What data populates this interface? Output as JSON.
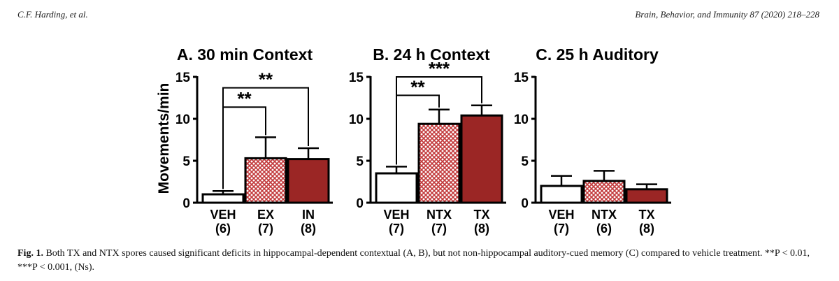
{
  "header": {
    "left": "C.F. Harding, et al.",
    "right": "Brain, Behavior, and Immunity 87 (2020) 218–228"
  },
  "figure": {
    "ylabel": "Movements/min",
    "caption_label": "Fig. 1.",
    "caption_text": "Both TX and NTX spores caused significant deficits in hippocampal-dependent contextual (A, B), but not non-hippocampal auditory-cued memory (C) compared to vehicle treatment. **P < 0.01, ***P < 0.001, (Ns)."
  },
  "colors": {
    "veh": "#ffffff",
    "pattern": "#c2383a",
    "solid": "#9b2625",
    "outline": "#000000"
  },
  "chart_data": [
    {
      "type": "bar",
      "title": "A. 30 min Context",
      "ylabel": "Movements/min",
      "ylim": [
        0,
        15
      ],
      "yticks": [
        "0",
        "5",
        "10",
        "15"
      ],
      "categories": [
        "VEH",
        "EX",
        "IN"
      ],
      "n_labels": [
        "(6)",
        "(7)",
        "(8)"
      ],
      "values": [
        1.0,
        5.3,
        5.2
      ],
      "errors": [
        0.4,
        2.5,
        1.3
      ],
      "fills": [
        "white",
        "hatched",
        "solid"
      ],
      "significance": [
        {
          "from": 0,
          "to": 1,
          "label": "**",
          "y": 11.4
        },
        {
          "from": 0,
          "to": 2,
          "label": "**",
          "y": 13.7
        }
      ]
    },
    {
      "type": "bar",
      "title": "B. 24 h Context",
      "ylabel": "",
      "ylim": [
        0,
        15
      ],
      "yticks": [
        "0",
        "5",
        "10",
        "15"
      ],
      "categories": [
        "VEH",
        "NTX",
        "TX"
      ],
      "n_labels": [
        "(7)",
        "(7)",
        "(8)"
      ],
      "values": [
        3.5,
        9.4,
        10.4
      ],
      "errors": [
        0.8,
        1.7,
        1.2
      ],
      "fills": [
        "white",
        "hatched",
        "solid"
      ],
      "significance": [
        {
          "from": 0,
          "to": 1,
          "label": "**",
          "y": 12.8
        },
        {
          "from": 0,
          "to": 2,
          "label": "***",
          "y": 15.0
        }
      ]
    },
    {
      "type": "bar",
      "title": "C. 25 h Auditory",
      "ylabel": "",
      "ylim": [
        0,
        15
      ],
      "yticks": [
        "0",
        "5",
        "10",
        "15"
      ],
      "categories": [
        "VEH",
        "NTX",
        "TX"
      ],
      "n_labels": [
        "(7)",
        "(6)",
        "(8)"
      ],
      "values": [
        2.0,
        2.6,
        1.6
      ],
      "errors": [
        1.2,
        1.2,
        0.6
      ],
      "fills": [
        "white",
        "hatched",
        "solid"
      ],
      "significance": []
    }
  ]
}
